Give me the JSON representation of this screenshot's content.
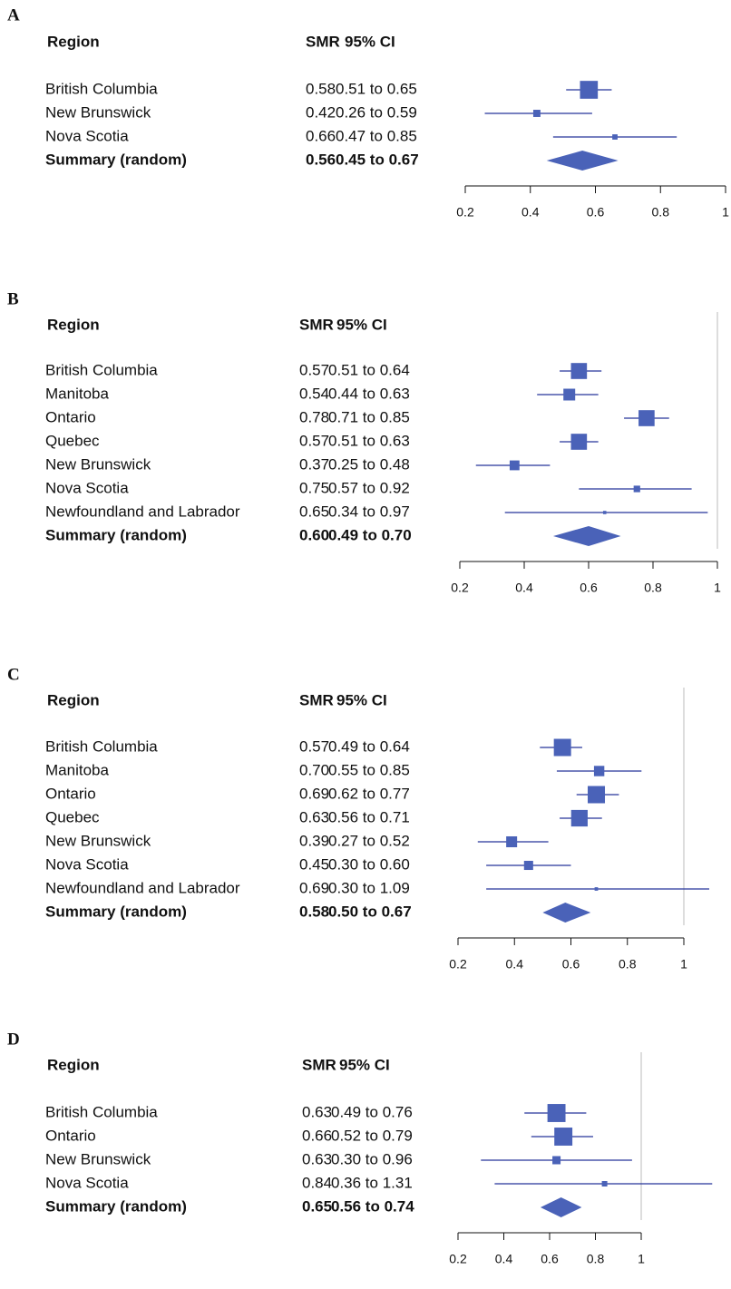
{
  "chart_data": [
    {
      "type": "forest",
      "panel": "A",
      "columns": [
        "Region",
        "SMR",
        "95% CI"
      ],
      "categories": [
        "British Columbia",
        "New Brunswick",
        "Nova Scotia"
      ],
      "values": [
        0.58,
        0.42,
        0.66
      ],
      "value_labels": [
        "0.58",
        "0.42",
        "0.66"
      ],
      "ci_low": [
        0.51,
        0.26,
        0.47
      ],
      "ci_high": [
        0.65,
        0.59,
        0.85
      ],
      "ci_labels": [
        "0.51 to 0.65",
        "0.26 to 0.59",
        "0.47 to 0.85"
      ],
      "weights": [
        80,
        13,
        7
      ],
      "summary": {
        "label": "Summary (random)",
        "value": 0.56,
        "value_label": "0.56",
        "ci_low": 0.45,
        "ci_high": 0.67,
        "ci_label": "0.45 to 0.67"
      },
      "xlim": [
        0.2,
        1
      ],
      "xticks": [
        0.2,
        0.4,
        0.6,
        0.8,
        1
      ],
      "color": "#4a62b8",
      "line_color": "#26359a"
    },
    {
      "type": "forest",
      "panel": "B",
      "columns": [
        "Region",
        "SMR",
        "95% CI"
      ],
      "categories": [
        "British Columbia",
        "Manitoba",
        "Ontario",
        "Quebec",
        "New Brunswick",
        "Nova Scotia",
        "Newfoundland and Labrador"
      ],
      "values": [
        0.57,
        0.54,
        0.78,
        0.57,
        0.37,
        0.75,
        0.65
      ],
      "value_labels": [
        "0.57",
        "0.54",
        "0.78",
        "0.57",
        "0.37",
        "0.75",
        "0.65"
      ],
      "ci_low": [
        0.51,
        0.44,
        0.71,
        0.51,
        0.25,
        0.57,
        0.34
      ],
      "ci_high": [
        0.64,
        0.63,
        0.85,
        0.63,
        0.48,
        0.92,
        0.97
      ],
      "ci_labels": [
        "0.51 to 0.64",
        "0.44 to 0.63",
        "0.71 to 0.85",
        "0.51 to 0.63",
        "0.25 to 0.48",
        "0.57 to 0.92",
        "0.34 to 0.97"
      ],
      "weights": [
        24,
        13,
        24,
        24,
        9,
        4,
        1
      ],
      "summary": {
        "label": "Summary (random)",
        "value": 0.6,
        "value_label": "0.60",
        "ci_low": 0.49,
        "ci_high": 0.7,
        "ci_label": "0.49 to 0.70"
      },
      "xlim": [
        0.2,
        1
      ],
      "xticks": [
        0.2,
        0.4,
        0.6,
        0.8,
        1
      ],
      "reference_line": 1,
      "color": "#4a62b8",
      "line_color": "#26359a"
    },
    {
      "type": "forest",
      "panel": "C",
      "columns": [
        "Region",
        "SMR",
        "95% CI"
      ],
      "categories": [
        "British Columbia",
        "Manitoba",
        "Ontario",
        "Quebec",
        "New Brunswick",
        "Nova Scotia",
        "Newfoundland and Labrador"
      ],
      "values": [
        0.57,
        0.7,
        0.69,
        0.63,
        0.39,
        0.45,
        0.69
      ],
      "value_labels": [
        "0.57",
        "0.70",
        "0.69",
        "0.63",
        "0.39",
        "0.45",
        "0.69"
      ],
      "ci_low": [
        0.49,
        0.55,
        0.62,
        0.56,
        0.27,
        0.3,
        0.3
      ],
      "ci_high": [
        0.64,
        0.85,
        0.77,
        0.71,
        0.52,
        0.6,
        1.09
      ],
      "ci_labels": [
        "0.49 to 0.64",
        "0.55 to 0.85",
        "0.62 to 0.77",
        "0.56 to 0.71",
        "0.27 to 0.52",
        "0.30 to 0.60",
        "0.30 to 1.09"
      ],
      "weights": [
        25,
        9,
        25,
        23,
        10,
        7,
        1
      ],
      "summary": {
        "label": "Summary (random)",
        "value": 0.58,
        "value_label": "0.58",
        "ci_low": 0.5,
        "ci_high": 0.67,
        "ci_label": "0.50 to 0.67"
      },
      "xlim": [
        0.2,
        1
      ],
      "xticks": [
        0.2,
        0.4,
        0.6,
        0.8,
        1
      ],
      "reference_line": 1,
      "color": "#4a62b8",
      "line_color": "#26359a"
    },
    {
      "type": "forest",
      "panel": "D",
      "columns": [
        "Region",
        "SMR",
        "95% CI"
      ],
      "categories": [
        "British Columbia",
        "Ontario",
        "New Brunswick",
        "Nova Scotia"
      ],
      "values": [
        0.63,
        0.66,
        0.63,
        0.84
      ],
      "value_labels": [
        "0.63",
        "0.66",
        "0.63",
        "0.84"
      ],
      "ci_low": [
        0.49,
        0.52,
        0.3,
        0.36
      ],
      "ci_high": [
        0.76,
        0.79,
        0.96,
        1.31
      ],
      "ci_labels": [
        "0.49 to 0.76",
        "0.52 to 0.79",
        "0.30 to 0.96",
        "0.36 to 1.31"
      ],
      "weights": [
        44,
        44,
        9,
        4
      ],
      "summary": {
        "label": "Summary (random)",
        "value": 0.65,
        "value_label": "0.65",
        "ci_low": 0.56,
        "ci_high": 0.74,
        "ci_label": "0.56 to 0.74"
      },
      "xlim": [
        0.2,
        1
      ],
      "xticks": [
        0.2,
        0.4,
        0.6,
        0.8,
        1
      ],
      "reference_line": 1,
      "color": "#4a62b8",
      "line_color": "#26359a"
    }
  ]
}
